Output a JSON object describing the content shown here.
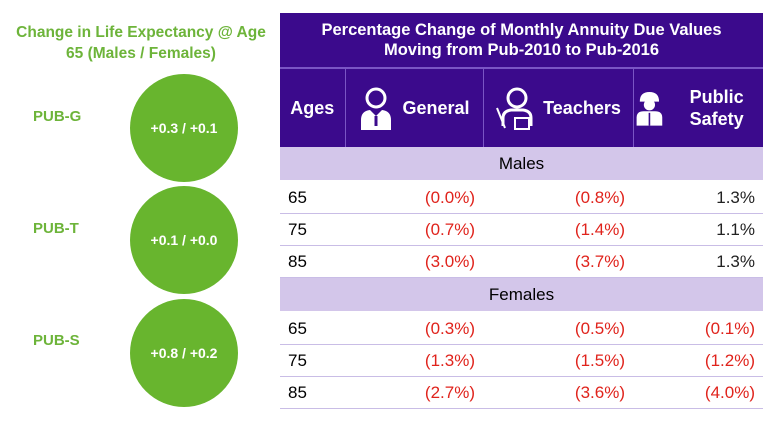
{
  "left": {
    "title": "Change in Life Expectancy @ Age 65 (Males / Females)",
    "plans": [
      {
        "label": "PUB-G",
        "value": "+0.3 / +0.1"
      },
      {
        "label": "PUB-T",
        "value": "+0.1 / +0.0"
      },
      {
        "label": "PUB-S",
        "value": "+0.8 / +0.2"
      }
    ]
  },
  "table": {
    "title_line1": "Percentage Change of Monthly Annuity Due Values",
    "title_line2": "Moving from Pub-2010 to Pub-2016",
    "headers": [
      "Ages",
      "General",
      "Teachers",
      "Public Safety"
    ],
    "icons": [
      "person-tie-icon",
      "teacher-icon",
      "firefighter-icon"
    ],
    "groups": [
      {
        "label": "Males",
        "rows": [
          [
            "65",
            "(0.0%)",
            "(0.8%)",
            "1.3%"
          ],
          [
            "75",
            "(0.7%)",
            "(1.4%)",
            "1.1%"
          ],
          [
            "85",
            "(3.0%)",
            "(3.7%)",
            "1.3%"
          ]
        ]
      },
      {
        "label": "Females",
        "rows": [
          [
            "65",
            "(0.3%)",
            "(0.5%)",
            "(0.1%)"
          ],
          [
            "75",
            "(1.3%)",
            "(1.5%)",
            "(1.2%)"
          ],
          [
            "85",
            "(2.7%)",
            "(3.6%)",
            "(4.0%)"
          ]
        ]
      }
    ]
  },
  "colors": {
    "header": "#3b0a8c",
    "group": "#d3c6ea",
    "green": "#68b52e",
    "negative": "#e0231c"
  }
}
